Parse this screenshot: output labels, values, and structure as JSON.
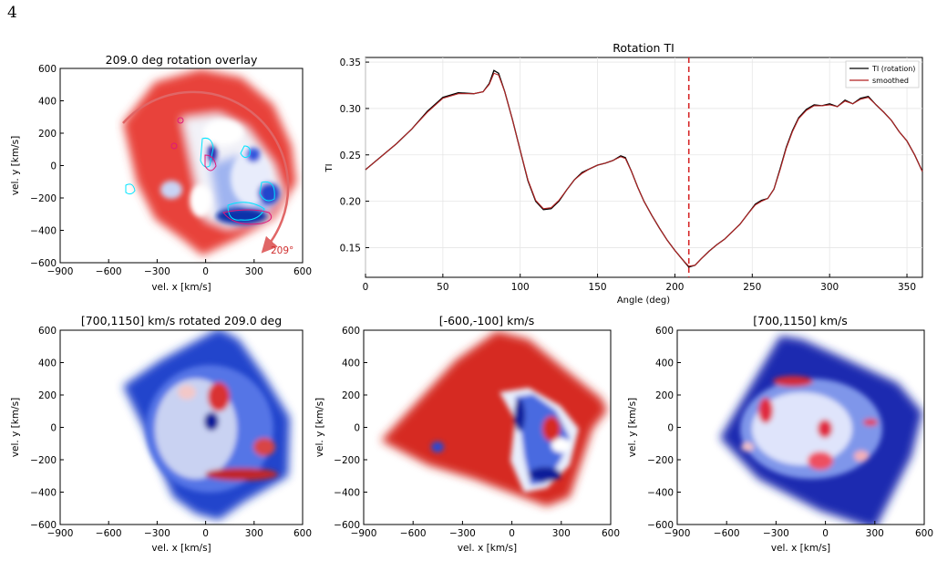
{
  "page_number": "4",
  "chart_data": [
    {
      "id": "overlay",
      "type": "heatmap",
      "title": "209.0 deg rotation overlay",
      "xlabel": "vel. x [km/s]",
      "ylabel": "vel. y [km/s]",
      "xlim": [
        -900,
        600
      ],
      "ylim": [
        -600,
        600
      ],
      "xticks": [
        "−900",
        "−600",
        "−300",
        "0",
        "300",
        "600"
      ],
      "yticks": [
        "600",
        "400",
        "200",
        "0",
        "−200",
        "−400",
        "−600"
      ],
      "rotation_deg": 209.0,
      "annotation": "209°",
      "arc_color": "#e06666",
      "description": "red/blue velocity map with cyan and magenta contours"
    },
    {
      "id": "rotation_ti",
      "type": "line",
      "title": "Rotation TI",
      "xlabel": "Angle (deg)",
      "ylabel": "TI",
      "xlim": [
        0,
        360
      ],
      "ylim": [
        0.118,
        0.355
      ],
      "xticks": [
        "0",
        "50",
        "100",
        "150",
        "200",
        "250",
        "300",
        "350"
      ],
      "yticks": [
        "0.35",
        "0.30",
        "0.25",
        "0.20",
        "0.15"
      ],
      "grid": true,
      "legend_position": "top-right",
      "vline_x": 209,
      "series": [
        {
          "name": "TI (rotation)",
          "color": "#000000",
          "x": [
            0,
            10,
            20,
            30,
            40,
            50,
            60,
            70,
            76,
            80,
            83,
            86,
            90,
            95,
            100,
            105,
            110,
            115,
            120,
            125,
            130,
            135,
            140,
            145,
            150,
            155,
            160,
            165,
            168,
            172,
            176,
            180,
            185,
            190,
            195,
            200,
            205,
            209,
            213,
            217,
            222,
            227,
            232,
            237,
            242,
            247,
            252,
            256,
            260,
            264,
            268,
            272,
            276,
            280,
            285,
            290,
            295,
            300,
            305,
            310,
            315,
            320,
            325,
            330,
            335,
            340,
            345,
            350,
            355,
            360
          ],
          "y": [
            0.234,
            0.248,
            0.262,
            0.278,
            0.297,
            0.312,
            0.317,
            0.316,
            0.318,
            0.327,
            0.341,
            0.338,
            0.318,
            0.288,
            0.255,
            0.222,
            0.2,
            0.191,
            0.192,
            0.2,
            0.212,
            0.223,
            0.231,
            0.235,
            0.239,
            0.241,
            0.244,
            0.249,
            0.247,
            0.232,
            0.215,
            0.2,
            0.185,
            0.171,
            0.158,
            0.147,
            0.137,
            0.129,
            0.131,
            0.138,
            0.146,
            0.153,
            0.159,
            0.167,
            0.175,
            0.186,
            0.197,
            0.201,
            0.203,
            0.213,
            0.235,
            0.258,
            0.276,
            0.29,
            0.299,
            0.304,
            0.303,
            0.305,
            0.302,
            0.309,
            0.305,
            0.311,
            0.313,
            0.304,
            0.296,
            0.287,
            0.275,
            0.265,
            0.25,
            0.232
          ]
        },
        {
          "name": "smoothed",
          "color": "#b22222",
          "x": [
            0,
            10,
            20,
            30,
            40,
            50,
            60,
            70,
            76,
            80,
            83,
            86,
            90,
            95,
            100,
            105,
            110,
            115,
            120,
            125,
            130,
            135,
            140,
            145,
            150,
            155,
            160,
            165,
            168,
            172,
            176,
            180,
            185,
            190,
            195,
            200,
            205,
            209,
            213,
            217,
            222,
            227,
            232,
            237,
            242,
            247,
            252,
            256,
            260,
            264,
            268,
            272,
            276,
            280,
            285,
            290,
            295,
            300,
            305,
            310,
            315,
            320,
            325,
            330,
            335,
            340,
            345,
            350,
            355,
            360
          ],
          "y": [
            0.234,
            0.248,
            0.262,
            0.278,
            0.296,
            0.311,
            0.316,
            0.316,
            0.318,
            0.326,
            0.338,
            0.336,
            0.318,
            0.288,
            0.255,
            0.223,
            0.201,
            0.192,
            0.193,
            0.201,
            0.212,
            0.223,
            0.23,
            0.235,
            0.239,
            0.241,
            0.244,
            0.248,
            0.246,
            0.232,
            0.215,
            0.2,
            0.185,
            0.171,
            0.158,
            0.147,
            0.137,
            0.13,
            0.131,
            0.138,
            0.146,
            0.153,
            0.159,
            0.167,
            0.175,
            0.186,
            0.196,
            0.2,
            0.203,
            0.213,
            0.234,
            0.257,
            0.275,
            0.289,
            0.298,
            0.303,
            0.303,
            0.304,
            0.302,
            0.308,
            0.305,
            0.31,
            0.312,
            0.304,
            0.296,
            0.287,
            0.275,
            0.265,
            0.25,
            0.232
          ]
        }
      ]
    },
    {
      "id": "rot_700_1150",
      "type": "heatmap",
      "title": "[700,1150] km/s rotated 209.0 deg",
      "xlabel": "vel. x [km/s]",
      "ylabel": "vel. y [km/s]",
      "xlim": [
        -900,
        600
      ],
      "ylim": [
        -600,
        600
      ],
      "xticks": [
        "−900",
        "−600",
        "−300",
        "0",
        "300",
        "600"
      ],
      "yticks": [
        "600",
        "400",
        "200",
        "0",
        "−200",
        "−400",
        "−600"
      ]
    },
    {
      "id": "neg600_neg100",
      "type": "heatmap",
      "title": "[-600,-100] km/s",
      "xlabel": "vel. x [km/s]",
      "ylabel": "vel. y [km/s]",
      "xlim": [
        -900,
        600
      ],
      "ylim": [
        -600,
        600
      ],
      "xticks": [
        "−900",
        "−600",
        "−300",
        "0",
        "300",
        "600"
      ],
      "yticks": [
        "600",
        "400",
        "200",
        "0",
        "−200",
        "−400",
        "−600"
      ]
    },
    {
      "id": "range_700_1150",
      "type": "heatmap",
      "title": "[700,1150] km/s",
      "xlabel": "vel. x [km/s]",
      "ylabel": "vel. y [km/s]",
      "xlim": [
        -900,
        600
      ],
      "ylim": [
        -600,
        600
      ],
      "xticks": [
        "−900",
        "−600",
        "−300",
        "0",
        "300",
        "600"
      ],
      "yticks": [
        "600",
        "400",
        "200",
        "0",
        "−200",
        "−400",
        "−600"
      ]
    }
  ]
}
